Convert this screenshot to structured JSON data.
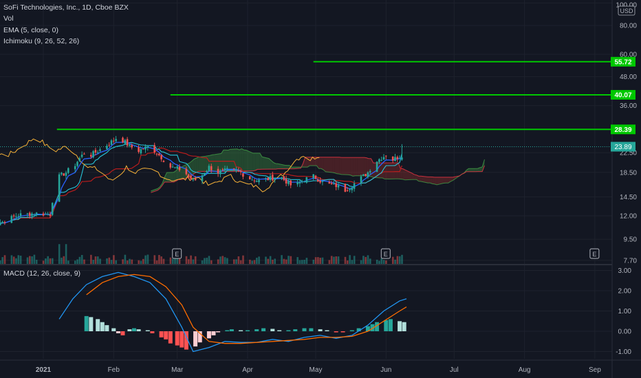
{
  "legend": {
    "title": "SoFi Technologies, Inc., 1D, Cboe BZX",
    "vol": "Vol",
    "ema": "EMA (5, close, 0)",
    "ichimoku": "Ichimoku (9, 26, 52, 26)",
    "macd": "MACD (12, 26, close, 9)"
  },
  "currency": "USD",
  "colors": {
    "background": "#131722",
    "up": "#26a69a",
    "down": "#ef5350",
    "resistance": "#00c800",
    "last_price": "#26a69a",
    "macd_line": "#2196f3",
    "signal_line": "#ff6d00",
    "ema": "#2962ff",
    "conversion": "#2962ff",
    "base": "#b71c1c",
    "lagging": "#f7b238",
    "cloud_up": "#43a047",
    "cloud_down": "#a5312e"
  },
  "chart_data": [
    {
      "type": "candlestick",
      "scale": "log",
      "y_ticks": [
        "100.00",
        "80.00",
        "60.00",
        "48.00",
        "36.00",
        "22.50",
        "18.50",
        "14.50",
        "12.00",
        "9.50",
        "7.70"
      ],
      "x_ticks": [
        "2021",
        "Feb",
        "Mar",
        "Apr",
        "May",
        "Jun",
        "Jul",
        "Aug",
        "Sep"
      ],
      "price_labels": {
        "last": "23.89",
        "levels": [
          "55.72",
          "40.07",
          "28.39"
        ]
      },
      "resistance_levels": [
        {
          "value": 55.72,
          "start": "Apr 30"
        },
        {
          "value": 40.07,
          "start": "Feb 26"
        },
        {
          "value": 28.39,
          "start": "Jan 7"
        }
      ],
      "last_price": 23.89,
      "close_series": [
        [
          "Dec 7",
          11.0
        ],
        [
          "Dec 14",
          11.3
        ],
        [
          "Dec 21",
          12.1
        ],
        [
          "Dec 28",
          12.3
        ],
        [
          "Jan 4",
          12.2
        ],
        [
          "Jan 7",
          17.5
        ],
        [
          "Jan 11",
          18.5
        ],
        [
          "Jan 15",
          20.0
        ],
        [
          "Jan 19",
          22.5
        ],
        [
          "Jan 22",
          22.0
        ],
        [
          "Jan 27",
          23.5
        ],
        [
          "Feb 1",
          25.5
        ],
        [
          "Feb 3",
          26.5
        ],
        [
          "Feb 8",
          24.0
        ],
        [
          "Feb 12",
          23.0
        ],
        [
          "Feb 17",
          24.0
        ],
        [
          "Feb 22",
          21.5
        ],
        [
          "Feb 26",
          19.5
        ],
        [
          "Mar 3",
          19.0
        ],
        [
          "Mar 8",
          17.0
        ],
        [
          "Mar 11",
          17.5
        ],
        [
          "Mar 15",
          19.5
        ],
        [
          "Mar 19",
          18.5
        ],
        [
          "Mar 24",
          19.0
        ],
        [
          "Mar 29",
          18.5
        ],
        [
          "Apr 1",
          17.5
        ],
        [
          "Apr 6",
          17.0
        ],
        [
          "Apr 12",
          17.5
        ],
        [
          "Apr 16",
          17.5
        ],
        [
          "Apr 21",
          16.0
        ],
        [
          "Apr 26",
          17.2
        ],
        [
          "Apr 30",
          17.8
        ],
        [
          "May 5",
          16.5
        ],
        [
          "May 10",
          16.2
        ],
        [
          "May 14",
          15.5
        ],
        [
          "May 19",
          16.8
        ],
        [
          "May 24",
          18.5
        ],
        [
          "May 27",
          20.5
        ],
        [
          "Jun 1",
          22.0
        ],
        [
          "Jun 4",
          21.0
        ],
        [
          "Jun 8",
          22.0
        ],
        [
          "Jun 10",
          23.9
        ]
      ],
      "earnings_markers": [
        "Mar 1",
        "Jun 1",
        "Sep 1"
      ],
      "earnings_label": "E"
    },
    {
      "type": "macd",
      "y_ticks": [
        "3.00",
        "2.00",
        "1.00",
        "0.00",
        "-1.00"
      ],
      "macd": [
        [
          "Jan 8",
          0.6
        ],
        [
          "Jan 14",
          1.6
        ],
        [
          "Jan 20",
          2.3
        ],
        [
          "Jan 27",
          2.7
        ],
        [
          "Feb 3",
          2.9
        ],
        [
          "Feb 10",
          2.7
        ],
        [
          "Feb 17",
          2.4
        ],
        [
          "Feb 24",
          1.6
        ],
        [
          "Mar 3",
          0.2
        ],
        [
          "Mar 8",
          -1.0
        ],
        [
          "Mar 15",
          -0.8
        ],
        [
          "Mar 22",
          -0.5
        ],
        [
          "Mar 29",
          -0.55
        ],
        [
          "Apr 5",
          -0.55
        ],
        [
          "Apr 12",
          -0.4
        ],
        [
          "Apr 19",
          -0.5
        ],
        [
          "Apr 26",
          -0.3
        ],
        [
          "May 3",
          -0.2
        ],
        [
          "May 10",
          -0.35
        ],
        [
          "May 17",
          -0.2
        ],
        [
          "May 24",
          0.3
        ],
        [
          "May 31",
          1.0
        ],
        [
          "Jun 7",
          1.5
        ],
        [
          "Jun 10",
          1.6
        ]
      ],
      "signal": [
        [
          "Jan 20",
          1.8
        ],
        [
          "Jan 27",
          2.4
        ],
        [
          "Feb 3",
          2.7
        ],
        [
          "Feb 10",
          2.8
        ],
        [
          "Feb 17",
          2.7
        ],
        [
          "Feb 24",
          2.2
        ],
        [
          "Mar 3",
          1.3
        ],
        [
          "Mar 8",
          0.2
        ],
        [
          "Mar 15",
          -0.5
        ],
        [
          "Mar 22",
          -0.6
        ],
        [
          "Mar 29",
          -0.6
        ],
        [
          "Apr 5",
          -0.55
        ],
        [
          "Apr 12",
          -0.5
        ],
        [
          "Apr 19",
          -0.45
        ],
        [
          "Apr 26",
          -0.4
        ],
        [
          "May 3",
          -0.3
        ],
        [
          "May 10",
          -0.3
        ],
        [
          "May 17",
          -0.25
        ],
        [
          "May 24",
          0.0
        ],
        [
          "May 31",
          0.5
        ],
        [
          "Jun 7",
          1.0
        ],
        [
          "Jun 10",
          1.2
        ]
      ],
      "histogram": [
        [
          "Jan 20",
          0.75
        ],
        [
          "Jan 22",
          0.7
        ],
        [
          "Jan 25",
          0.6
        ],
        [
          "Jan 27",
          0.45
        ],
        [
          "Jan 29",
          0.3
        ],
        [
          "Feb 1",
          0.15
        ],
        [
          "Feb 3",
          -0.1
        ],
        [
          "Feb 5",
          -0.2
        ],
        [
          "Feb 8",
          0.1
        ],
        [
          "Feb 10",
          0.15
        ],
        [
          "Feb 12",
          0.1
        ],
        [
          "Feb 16",
          0.05
        ],
        [
          "Feb 18",
          -0.1
        ],
        [
          "Feb 22",
          -0.3
        ],
        [
          "Feb 24",
          -0.4
        ],
        [
          "Feb 26",
          -0.6
        ],
        [
          "Mar 1",
          -0.7
        ],
        [
          "Mar 3",
          -0.8
        ],
        [
          "Mar 5",
          -0.9
        ],
        [
          "Mar 9",
          -0.75
        ],
        [
          "Mar 11",
          -0.55
        ],
        [
          "Mar 15",
          -0.35
        ],
        [
          "Mar 17",
          -0.2
        ],
        [
          "Mar 19",
          -0.05
        ],
        [
          "Mar 23",
          0.05
        ],
        [
          "Mar 25",
          0.1
        ],
        [
          "Mar 29",
          0.05
        ],
        [
          "Apr 1",
          0.05
        ],
        [
          "Apr 5",
          0.1
        ],
        [
          "Apr 8",
          0.15
        ],
        [
          "Apr 12",
          0.12
        ],
        [
          "Apr 15",
          0.05
        ],
        [
          "Apr 19",
          0.05
        ],
        [
          "Apr 22",
          0.1
        ],
        [
          "Apr 26",
          0.15
        ],
        [
          "Apr 29",
          0.15
        ],
        [
          "May 3",
          0.1
        ],
        [
          "May 6",
          0.05
        ],
        [
          "May 10",
          -0.05
        ],
        [
          "May 13",
          -0.05
        ],
        [
          "May 17",
          0.05
        ],
        [
          "May 20",
          0.15
        ],
        [
          "May 24",
          0.25
        ],
        [
          "May 26",
          0.35
        ],
        [
          "May 28",
          0.45
        ],
        [
          "Jun 1",
          0.55
        ],
        [
          "Jun 3",
          0.6
        ],
        [
          "Jun 7",
          0.5
        ],
        [
          "Jun 9",
          0.45
        ]
      ]
    }
  ]
}
